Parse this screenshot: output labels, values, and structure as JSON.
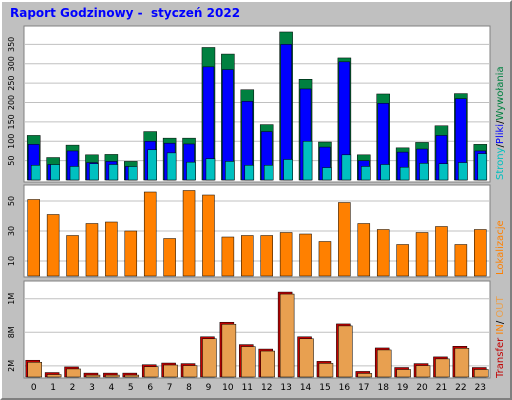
{
  "title": "Raport Godzinowy -  styczeń 2022",
  "colors": {
    "frame": "#c0c0c0",
    "panel": "#ffffff",
    "grid": "#c0c0c0",
    "strony": "#00c0c0",
    "pliki": "#0000ff",
    "wywolania": "#008040",
    "lokalizacje": "#ff8000",
    "transfer": "#c00000",
    "in": "#ff8000",
    "out": "#e8a050"
  },
  "chart_data": [
    {
      "type": "bar",
      "name": "hits",
      "categories": [
        "0",
        "1",
        "2",
        "3",
        "4",
        "5",
        "6",
        "7",
        "8",
        "9",
        "10",
        "11",
        "12",
        "13",
        "14",
        "15",
        "16",
        "17",
        "18",
        "19",
        "20",
        "21",
        "22",
        "23"
      ],
      "ylim": [
        0,
        400
      ],
      "yticks": [
        "50",
        "100",
        "150",
        "200",
        "250",
        "300",
        "350"
      ],
      "legend": {
        "strony": "Strony",
        "sep1": "/",
        "pliki": "Pliki",
        "sep2": "/",
        "wywolania": "Wywołania"
      },
      "series": [
        {
          "key": "wywolania",
          "values": [
            115,
            58,
            90,
            65,
            66,
            48,
            125,
            108,
            108,
            342,
            325,
            233,
            143,
            382,
            260,
            98,
            315,
            65,
            222,
            83,
            97,
            140,
            223,
            92
          ]
        },
        {
          "key": "pliki",
          "values": [
            92,
            40,
            75,
            45,
            48,
            35,
            100,
            95,
            93,
            292,
            285,
            203,
            125,
            350,
            235,
            85,
            305,
            50,
            198,
            72,
            80,
            115,
            210,
            75
          ]
        },
        {
          "key": "strony",
          "values": [
            38,
            40,
            35,
            42,
            40,
            35,
            78,
            70,
            46,
            55,
            48,
            38,
            38,
            53,
            100,
            32,
            65,
            35,
            40,
            33,
            43,
            42,
            45,
            68
          ]
        }
      ]
    },
    {
      "type": "bar",
      "name": "locations",
      "categories": [
        "0",
        "1",
        "2",
        "3",
        "4",
        "5",
        "6",
        "7",
        "8",
        "9",
        "10",
        "11",
        "12",
        "13",
        "14",
        "15",
        "16",
        "17",
        "18",
        "19",
        "20",
        "21",
        "22",
        "23"
      ],
      "ylim": [
        0,
        60
      ],
      "yticks": [
        "10",
        "30",
        "50"
      ],
      "legend": {
        "lokalizacje": "Lokalizacje"
      },
      "series": [
        {
          "key": "lokalizacje",
          "values": [
            51,
            41,
            27,
            35,
            36,
            30,
            56,
            25,
            57,
            54,
            26,
            27,
            27,
            29,
            28,
            23,
            49,
            35,
            31,
            21,
            29,
            33,
            21,
            31
          ]
        }
      ]
    },
    {
      "type": "bar",
      "name": "transfer",
      "categories": [
        "0",
        "1",
        "2",
        "3",
        "4",
        "5",
        "6",
        "7",
        "8",
        "9",
        "10",
        "11",
        "12",
        "13",
        "14",
        "15",
        "16",
        "17",
        "18",
        "19",
        "20",
        "21",
        "22",
        "23"
      ],
      "ylim": [
        0,
        1.7
      ],
      "yticks": [
        "2M",
        "8M",
        "1M"
      ],
      "legend": {
        "transfer": "Transfer",
        "in": "IN",
        "sep": "/",
        "out": "OUT"
      },
      "series": [
        {
          "key": "transfer",
          "values": [
            0.3,
            0.08,
            0.18,
            0.07,
            0.07,
            0.07,
            0.22,
            0.25,
            0.24,
            0.72,
            0.98,
            0.58,
            0.5,
            1.52,
            0.72,
            0.28,
            0.95,
            0.1,
            0.52,
            0.17,
            0.24,
            0.36,
            0.55,
            0.17
          ]
        }
      ]
    }
  ]
}
